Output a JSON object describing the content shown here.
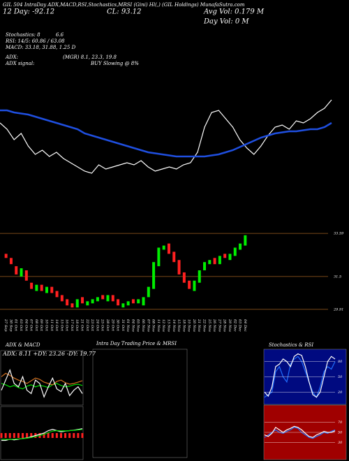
{
  "header": {
    "left": "GIL 504 IntraDay ADX,MACD,RSI,Stochastics,MRSI (Gini) Hl(,)",
    "right": "(GIL Holdings) MunafaSutra.com",
    "day": "12 Day: -92.12",
    "close": "CL: 93.12",
    "avg_vol": "Avg Vol: 0.179 M",
    "day_vol": "Day Vol: 0  M"
  },
  "stats": {
    "stoch_label": "Stochastics: 8",
    "stoch_value": "6.6",
    "rsi": "RSI: 14/5: 60.86 / 63.08",
    "macd": "MACD: 33.18, 31.88, 1.25 D",
    "adx_label": "ADX:",
    "adx_value": "(MGR) 8.1, 23.3, 19.8",
    "signal_label": "ADX  signal:",
    "signal_value": "BUY Slowing @ 8%"
  },
  "chart_data": [
    {
      "type": "candlestick",
      "categories": [
        "27 Sep",
        "30 Sep",
        "01 Oct",
        "03 Oct",
        "04 Oct",
        "07 Oct",
        "08 Oct",
        "09 Oct",
        "10 Oct",
        "11 Oct",
        "14 Oct",
        "15 Oct",
        "16 Oct",
        "17 Oct",
        "18 Oct",
        "21 Oct",
        "22 Oct",
        "23 Oct",
        "24 Oct",
        "25 Oct",
        "28 Oct",
        "29 Oct",
        "30 Oct",
        "31 Oct",
        "01 Nov",
        "04 Nov",
        "05 Nov",
        "06 Nov",
        "07 Nov",
        "08 Nov",
        "11 Nov",
        "12 Nov",
        "13 Nov",
        "14 Nov",
        "15 Nov",
        "18 Nov",
        "19 Nov",
        "20 Nov",
        "21 Nov",
        "22 Nov",
        "25 Nov",
        "26 Nov",
        "27 Nov",
        "28 Nov",
        "29 Nov",
        "02 Dec",
        "03 Dec",
        "04 Dec"
      ],
      "open": [
        32.6,
        32.4,
        32.0,
        31.5,
        31.8,
        31.2,
        30.8,
        31.1,
        30.7,
        31.0,
        30.8,
        30.6,
        30.4,
        30.2,
        30.0,
        30.5,
        30.1,
        30.2,
        30.3,
        30.6,
        30.3,
        30.6,
        30.4,
        30.0,
        30.1,
        30.4,
        30.2,
        30.1,
        30.5,
        30.9,
        32.0,
        32.8,
        33.1,
        32.7,
        32.3,
        31.7,
        31.3,
        30.8,
        31.2,
        31.8,
        32.1,
        32.4,
        32.1,
        32.6,
        32.3,
        32.5,
        32.8,
        33.0
      ],
      "close": [
        32.4,
        32.1,
        31.6,
        31.9,
        31.3,
        30.9,
        31.1,
        30.8,
        31.0,
        30.7,
        30.5,
        30.3,
        30.1,
        30.0,
        30.4,
        30.2,
        30.3,
        30.4,
        30.5,
        30.4,
        30.6,
        30.3,
        30.1,
        30.2,
        30.3,
        30.2,
        30.4,
        30.5,
        31.0,
        32.2,
        32.9,
        33.0,
        32.6,
        32.2,
        31.6,
        31.2,
        30.9,
        31.3,
        31.8,
        32.2,
        32.3,
        32.1,
        32.5,
        32.4,
        32.6,
        32.9,
        33.1,
        33.5
      ],
      "up_color": "#00ee00",
      "down_color": "#ff2020",
      "ylim": [
        29.6,
        33.9
      ],
      "yticks": [
        33.59,
        31.5,
        29.91
      ]
    },
    {
      "type": "line",
      "ylim": [
        29.6,
        33.6
      ],
      "series": [
        {
          "color": "#ffffff",
          "values": [
            32.4,
            32.1,
            31.6,
            31.9,
            31.3,
            30.9,
            31.1,
            30.8,
            31.0,
            30.7,
            30.5,
            30.3,
            30.1,
            30.0,
            30.4,
            30.2,
            30.3,
            30.4,
            30.5,
            30.4,
            30.6,
            30.3,
            30.1,
            30.2,
            30.3,
            30.2,
            30.4,
            30.5,
            31.0,
            32.2,
            32.9,
            33.0,
            32.6,
            32.2,
            31.6,
            31.2,
            30.9,
            31.3,
            31.8,
            32.2,
            32.3,
            32.1,
            32.5,
            32.4,
            32.6,
            32.9,
            33.1,
            33.5
          ]
        },
        {
          "color": "#1f4fe0",
          "values": [
            33.0,
            33.0,
            32.9,
            32.85,
            32.8,
            32.7,
            32.6,
            32.5,
            32.4,
            32.3,
            32.2,
            32.1,
            31.9,
            31.8,
            31.7,
            31.6,
            31.5,
            31.4,
            31.3,
            31.2,
            31.1,
            31.0,
            30.95,
            30.9,
            30.85,
            30.8,
            30.8,
            30.8,
            30.8,
            30.8,
            30.85,
            30.9,
            31.0,
            31.1,
            31.25,
            31.4,
            31.55,
            31.7,
            31.8,
            31.9,
            31.95,
            32.0,
            32.0,
            32.05,
            32.1,
            32.1,
            32.2,
            32.4
          ]
        }
      ]
    },
    {
      "type": "line",
      "title": "ADX  & MACD",
      "label": "ADX: 8.11  +DY: 23.26  -DY: 19.77",
      "ylim": [
        0,
        60
      ],
      "series": [
        {
          "color": "#00dd00",
          "values": [
            30,
            28,
            25,
            27,
            24,
            22,
            26,
            28,
            25,
            27,
            26,
            24,
            28,
            30,
            27,
            25,
            26,
            28,
            29,
            27
          ]
        },
        {
          "color": "#d07020",
          "values": [
            40,
            45,
            42,
            38,
            35,
            33,
            30,
            34,
            38,
            36,
            32,
            30,
            28,
            33,
            35,
            31,
            29,
            30,
            32,
            34
          ]
        },
        {
          "color": "#ffffff",
          "values": [
            20,
            35,
            50,
            30,
            25,
            40,
            20,
            15,
            35,
            30,
            10,
            25,
            38,
            22,
            18,
            30,
            12,
            20,
            25,
            15
          ]
        }
      ]
    },
    {
      "type": "macd",
      "ylim": [
        -10,
        10
      ],
      "hist_color": "#ff2020",
      "hist": [
        -2,
        -2,
        -2,
        -2,
        -2,
        -2,
        -2,
        -2,
        -2,
        -2,
        -2,
        -2,
        -2,
        -2,
        -2,
        -2,
        -2,
        -2,
        -2,
        -2
      ],
      "series": [
        {
          "color": "#ffffff",
          "values": [
            -3,
            -3,
            -2.5,
            -2.8,
            -2.5,
            -2.2,
            -2,
            -1.5,
            -1,
            -0.5,
            0,
            1,
            1.5,
            1,
            0.5,
            0.8,
            1,
            1.2,
            1.5,
            1.8
          ]
        },
        {
          "color": "#00dd00",
          "values": [
            -2.5,
            -2.6,
            -2.6,
            -2.5,
            -2.4,
            -2.3,
            -2.1,
            -1.8,
            -1.4,
            -1,
            -0.5,
            0.2,
            0.8,
            1,
            0.9,
            0.9,
            1,
            1.1,
            1.3,
            1.5
          ]
        }
      ]
    },
    {
      "type": "empty",
      "title": "Intra Day Trading Price  & MRSI"
    },
    {
      "type": "line",
      "title": "Stochastics & RSI",
      "background": "#000a80",
      "ylim": [
        0,
        100
      ],
      "yticks": [
        80,
        50,
        20
      ],
      "series": [
        {
          "color": "#1f6fff",
          "values": [
            10,
            15,
            20,
            60,
            70,
            50,
            40,
            75,
            85,
            90,
            80,
            60,
            40,
            20,
            10,
            30,
            60,
            70,
            65,
            80
          ]
        },
        {
          "color": "#ffffff",
          "values": [
            20,
            12,
            30,
            70,
            75,
            85,
            80,
            70,
            90,
            95,
            92,
            70,
            40,
            15,
            10,
            20,
            50,
            80,
            90,
            85
          ]
        }
      ]
    },
    {
      "type": "line",
      "background": "#a00000",
      "ylim": [
        0,
        100
      ],
      "yticks": [
        70,
        50,
        30
      ],
      "series": [
        {
          "color": "#1f6fff",
          "values": [
            40,
            45,
            50,
            55,
            50,
            48,
            52,
            55,
            60,
            58,
            50,
            45,
            40,
            38,
            42,
            45,
            50,
            48,
            52,
            55
          ]
        },
        {
          "color": "#ffffff",
          "values": [
            45,
            42,
            48,
            60,
            55,
            50,
            55,
            58,
            62,
            60,
            55,
            48,
            42,
            40,
            45,
            48,
            52,
            50,
            50,
            53
          ]
        }
      ]
    }
  ]
}
